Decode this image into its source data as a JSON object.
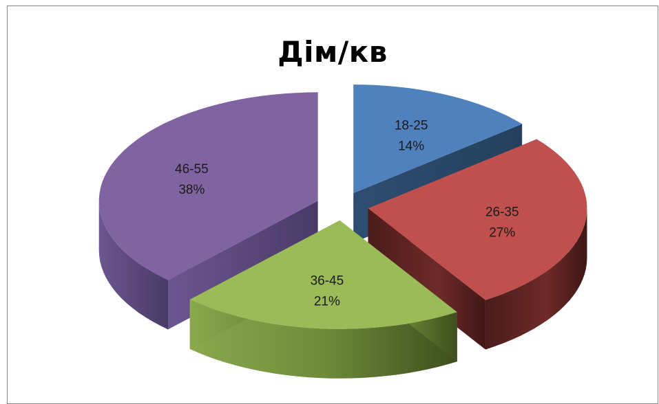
{
  "chart_data": {
    "type": "pie",
    "title": "Дім/кв",
    "exploded": true,
    "three_d": true,
    "categories": [
      "18-25",
      "26-35",
      "36-45",
      "46-55"
    ],
    "values": [
      14,
      27,
      21,
      38
    ],
    "value_labels": [
      "14%",
      "27%",
      "21%",
      "38%"
    ],
    "colors": [
      "#4f81bd",
      "#c0504d",
      "#9bbb59",
      "#8064a2"
    ]
  }
}
